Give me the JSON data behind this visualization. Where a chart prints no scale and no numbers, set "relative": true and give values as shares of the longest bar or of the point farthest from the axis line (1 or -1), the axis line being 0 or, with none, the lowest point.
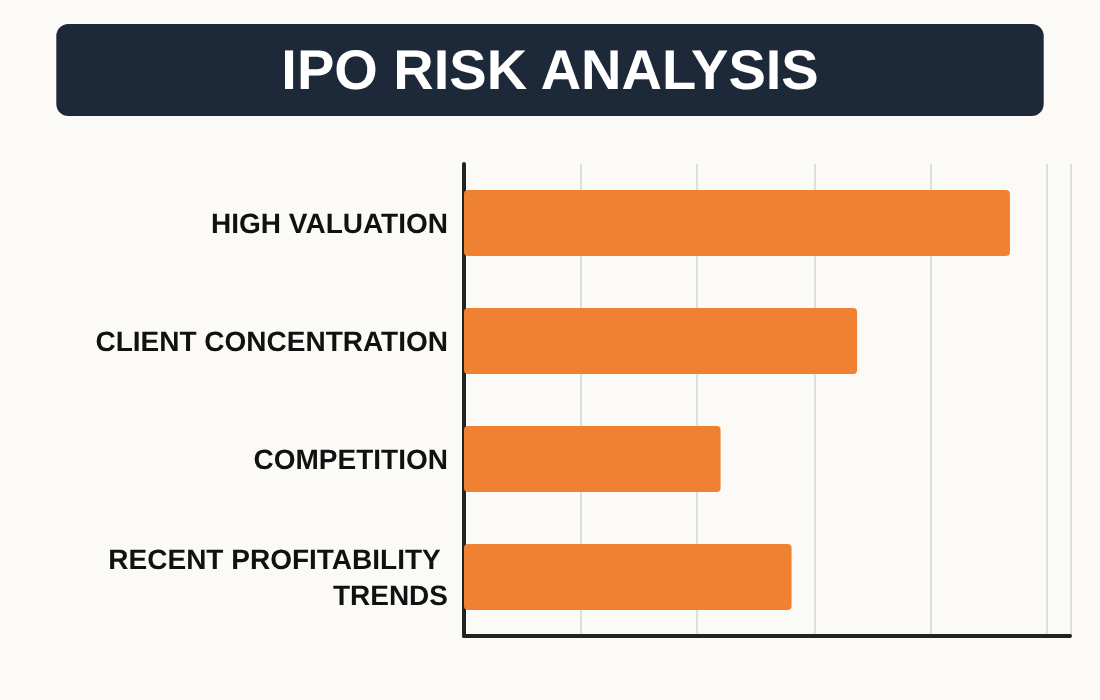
{
  "chart_data": {
    "type": "bar",
    "orientation": "horizontal",
    "relative": true,
    "title": "IPO RISK ANALYSIS",
    "categories": [
      "HIGH VALUATION",
      "CLIENT CONCENTRATION",
      "COMPETITION",
      "RECENT PROFITABILITY TRENDS"
    ],
    "values": [
      1,
      0.72,
      0.47,
      0.6
    ],
    "color": "#ef8232",
    "grid": "x"
  }
}
